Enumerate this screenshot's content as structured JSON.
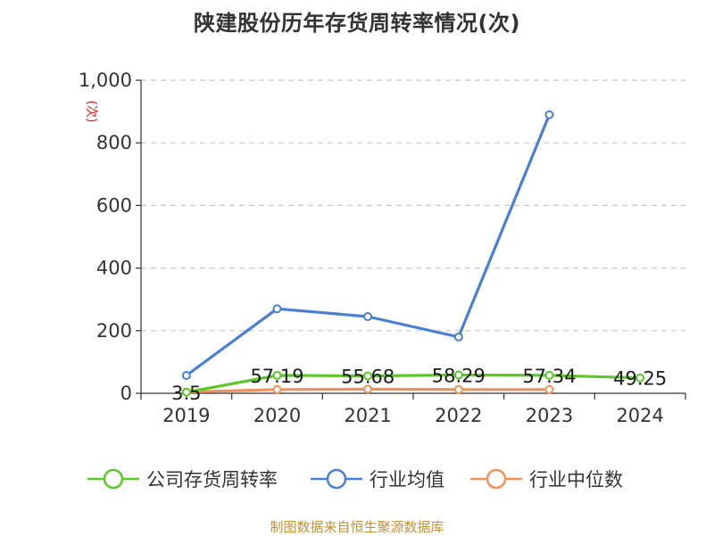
{
  "chart_data": {
    "type": "line",
    "title": "陕建股份历年存货周转率情况(次)",
    "ylabel": "(次)",
    "ylim": [
      0,
      1000
    ],
    "yticks": [
      0,
      200,
      400,
      600,
      800,
      1000
    ],
    "ytick_labels": [
      "0",
      "200",
      "400",
      "600",
      "800",
      "1,000"
    ],
    "categories": [
      "2019",
      "2020",
      "2021",
      "2022",
      "2023",
      "2024"
    ],
    "grid": true,
    "legend_position": "bottom",
    "series": [
      {
        "name": "公司存货周转率",
        "color": "#5cc72a",
        "values": [
          3.5,
          57.19,
          55.68,
          58.29,
          57.34,
          49.25
        ],
        "labels": [
          "3.5",
          "57.19",
          "55.68",
          "58.29",
          "57.34",
          "49.25"
        ]
      },
      {
        "name": "行业均值",
        "color": "#4a7fd6",
        "values": [
          57,
          270,
          245,
          180,
          890,
          null
        ]
      },
      {
        "name": "行业中位数",
        "color": "#f0915c",
        "values": [
          4,
          12,
          13,
          12,
          12,
          null
        ]
      }
    ]
  },
  "source": "制图数据来自恒生聚源数据库"
}
